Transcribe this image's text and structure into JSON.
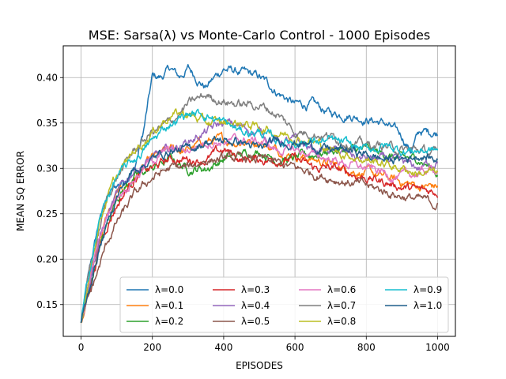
{
  "chart_data": {
    "type": "line",
    "title": "MSE: Sarsa(λ) vs Monte-Carlo Control - 1000 Episodes",
    "xlabel": "EPISODES",
    "ylabel": "MEAN SQ ERROR",
    "xlim": [
      -50,
      1050
    ],
    "ylim": [
      0.115,
      0.435
    ],
    "xticks": [
      0,
      200,
      400,
      600,
      800,
      1000
    ],
    "yticks": [
      0.15,
      0.2,
      0.25,
      0.3,
      0.35,
      0.4
    ],
    "ytick_labels": [
      "0.15",
      "0.20",
      "0.25",
      "0.30",
      "0.35",
      "0.40"
    ],
    "grid": true,
    "legend_position": "lower-right",
    "legend_columns": 4,
    "series": [
      {
        "name": "λ=0.0",
        "color": "#1f77b4",
        "x": [
          0,
          25,
          50,
          75,
          100,
          150,
          175,
          200,
          225,
          250,
          275,
          300,
          350,
          400,
          450,
          500,
          550,
          600,
          650,
          700,
          750,
          800,
          850,
          900,
          925,
          950,
          975,
          1000
        ],
        "y": [
          0.13,
          0.19,
          0.24,
          0.27,
          0.28,
          0.3,
          0.34,
          0.4,
          0.4,
          0.41,
          0.4,
          0.41,
          0.39,
          0.41,
          0.405,
          0.4,
          0.385,
          0.37,
          0.37,
          0.36,
          0.36,
          0.355,
          0.35,
          0.335,
          0.32,
          0.34,
          0.34,
          0.34
        ],
        "noise": 0.004
      },
      {
        "name": "λ=0.1",
        "color": "#ff7f0e",
        "x": [
          0,
          25,
          50,
          75,
          100,
          150,
          200,
          250,
          300,
          350,
          400,
          450,
          500,
          550,
          600,
          650,
          700,
          750,
          800,
          850,
          900,
          950,
          1000
        ],
        "y": [
          0.13,
          0.18,
          0.22,
          0.25,
          0.27,
          0.29,
          0.31,
          0.32,
          0.32,
          0.33,
          0.33,
          0.33,
          0.33,
          0.32,
          0.315,
          0.31,
          0.305,
          0.3,
          0.295,
          0.29,
          0.285,
          0.28,
          0.28
        ],
        "noise": 0.004
      },
      {
        "name": "λ=0.2",
        "color": "#2ca02c",
        "x": [
          0,
          25,
          50,
          75,
          100,
          150,
          200,
          250,
          300,
          350,
          400,
          450,
          500,
          550,
          600,
          650,
          700,
          750,
          800,
          850,
          900,
          950,
          1000
        ],
        "y": [
          0.13,
          0.17,
          0.21,
          0.24,
          0.27,
          0.29,
          0.3,
          0.31,
          0.3,
          0.3,
          0.31,
          0.315,
          0.32,
          0.31,
          0.31,
          0.315,
          0.32,
          0.32,
          0.32,
          0.315,
          0.31,
          0.31,
          0.295
        ],
        "noise": 0.004
      },
      {
        "name": "λ=0.3",
        "color": "#d62728",
        "x": [
          0,
          25,
          50,
          75,
          100,
          150,
          200,
          250,
          300,
          350,
          400,
          450,
          500,
          550,
          600,
          650,
          700,
          750,
          800,
          850,
          900,
          950,
          1000
        ],
        "y": [
          0.13,
          0.17,
          0.21,
          0.24,
          0.26,
          0.29,
          0.3,
          0.31,
          0.31,
          0.31,
          0.32,
          0.31,
          0.31,
          0.31,
          0.31,
          0.3,
          0.3,
          0.295,
          0.29,
          0.285,
          0.28,
          0.275,
          0.275
        ],
        "noise": 0.004
      },
      {
        "name": "λ=0.4",
        "color": "#9467bd",
        "x": [
          0,
          25,
          50,
          75,
          100,
          150,
          200,
          250,
          300,
          350,
          400,
          450,
          500,
          550,
          600,
          650,
          700,
          750,
          800,
          850,
          900,
          950,
          1000
        ],
        "y": [
          0.13,
          0.18,
          0.22,
          0.25,
          0.27,
          0.3,
          0.31,
          0.32,
          0.33,
          0.34,
          0.35,
          0.345,
          0.34,
          0.33,
          0.33,
          0.32,
          0.32,
          0.315,
          0.31,
          0.31,
          0.305,
          0.3,
          0.31
        ],
        "noise": 0.004
      },
      {
        "name": "λ=0.5",
        "color": "#8c564b",
        "x": [
          0,
          25,
          50,
          75,
          100,
          150,
          200,
          250,
          300,
          350,
          400,
          450,
          500,
          550,
          600,
          650,
          700,
          750,
          800,
          850,
          900,
          950,
          1000
        ],
        "y": [
          0.13,
          0.16,
          0.19,
          0.22,
          0.24,
          0.27,
          0.29,
          0.3,
          0.3,
          0.31,
          0.31,
          0.31,
          0.31,
          0.305,
          0.3,
          0.295,
          0.29,
          0.285,
          0.28,
          0.275,
          0.27,
          0.265,
          0.26
        ],
        "noise": 0.004
      },
      {
        "name": "λ=0.6",
        "color": "#e377c2",
        "x": [
          0,
          25,
          50,
          75,
          100,
          150,
          200,
          250,
          300,
          350,
          400,
          450,
          500,
          550,
          600,
          650,
          700,
          750,
          800,
          850,
          900,
          950,
          1000
        ],
        "y": [
          0.13,
          0.18,
          0.22,
          0.25,
          0.27,
          0.29,
          0.31,
          0.32,
          0.32,
          0.33,
          0.33,
          0.33,
          0.33,
          0.32,
          0.32,
          0.315,
          0.31,
          0.305,
          0.3,
          0.295,
          0.29,
          0.295,
          0.3
        ],
        "noise": 0.004
      },
      {
        "name": "λ=0.7",
        "color": "#7f7f7f",
        "x": [
          0,
          25,
          50,
          75,
          100,
          150,
          200,
          250,
          300,
          350,
          400,
          450,
          500,
          550,
          600,
          650,
          700,
          750,
          800,
          850,
          900,
          950,
          1000
        ],
        "y": [
          0.13,
          0.19,
          0.23,
          0.27,
          0.29,
          0.32,
          0.34,
          0.35,
          0.37,
          0.38,
          0.375,
          0.37,
          0.37,
          0.36,
          0.34,
          0.34,
          0.335,
          0.33,
          0.325,
          0.325,
          0.32,
          0.32,
          0.315
        ],
        "noise": 0.004
      },
      {
        "name": "λ=0.8",
        "color": "#bcbd22",
        "x": [
          0,
          25,
          50,
          75,
          100,
          150,
          200,
          250,
          300,
          350,
          400,
          450,
          500,
          550,
          600,
          650,
          700,
          750,
          800,
          850,
          900,
          950,
          1000
        ],
        "y": [
          0.13,
          0.19,
          0.24,
          0.27,
          0.29,
          0.32,
          0.34,
          0.36,
          0.36,
          0.35,
          0.35,
          0.35,
          0.345,
          0.34,
          0.335,
          0.33,
          0.32,
          0.315,
          0.31,
          0.305,
          0.3,
          0.295,
          0.295
        ],
        "noise": 0.004
      },
      {
        "name": "λ=0.9",
        "color": "#17becf",
        "x": [
          0,
          25,
          50,
          75,
          100,
          150,
          200,
          250,
          300,
          350,
          400,
          450,
          500,
          550,
          600,
          650,
          700,
          750,
          800,
          850,
          900,
          950,
          1000
        ],
        "y": [
          0.13,
          0.19,
          0.24,
          0.27,
          0.29,
          0.31,
          0.33,
          0.35,
          0.36,
          0.36,
          0.35,
          0.34,
          0.34,
          0.33,
          0.33,
          0.33,
          0.33,
          0.325,
          0.32,
          0.325,
          0.32,
          0.32,
          0.32
        ],
        "noise": 0.004
      },
      {
        "name": "λ=1.0",
        "color": "#1f5f8b",
        "x": [
          0,
          25,
          50,
          75,
          100,
          150,
          200,
          250,
          300,
          350,
          400,
          450,
          500,
          550,
          600,
          650,
          700,
          750,
          800,
          850,
          900,
          950,
          1000
        ],
        "y": [
          0.13,
          0.17,
          0.21,
          0.24,
          0.27,
          0.3,
          0.31,
          0.32,
          0.32,
          0.33,
          0.33,
          0.33,
          0.32,
          0.33,
          0.33,
          0.325,
          0.32,
          0.32,
          0.315,
          0.31,
          0.31,
          0.315,
          0.31
        ],
        "noise": 0.004
      }
    ]
  }
}
